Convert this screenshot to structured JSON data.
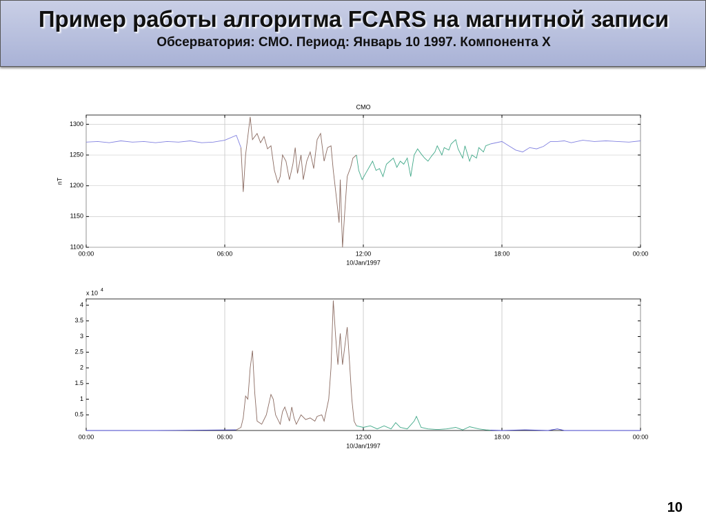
{
  "header": {
    "title": "Пример работы алгоритма FCARS на магнитной записи",
    "subtitle": "Обсерватория: CMO. Период: Январь  10  1997. Компонента X"
  },
  "page_number": "10",
  "chart_data": [
    {
      "type": "line",
      "title": "CMO",
      "ylabel": "nT",
      "xlabel": "10/Jan/1997",
      "xlim": [
        0,
        24
      ],
      "ylim": [
        1100,
        1315
      ],
      "xticks": [
        {
          "value": 0,
          "label": "00:00"
        },
        {
          "value": 6,
          "label": "06:00"
        },
        {
          "value": 12,
          "label": "12:00"
        },
        {
          "value": 18,
          "label": "18:00"
        },
        {
          "value": 24,
          "label": "00:00"
        }
      ],
      "yticks": [
        1100,
        1150,
        1200,
        1250,
        1300
      ],
      "xgrid": true,
      "ygrid": true,
      "series": [
        {
          "color": "#8080e0",
          "x": [
            0,
            0.5,
            1,
            1.5,
            2,
            2.5,
            3,
            3.5,
            4,
            4.5,
            5,
            5.5,
            6,
            6.5,
            6.7
          ],
          "values": [
            1271,
            1272,
            1270,
            1273,
            1271,
            1272,
            1270,
            1272,
            1271,
            1273,
            1270,
            1271,
            1274,
            1282,
            1262
          ]
        },
        {
          "color": "#8a6a60",
          "x": [
            6.7,
            6.8,
            6.9,
            7.1,
            7.2,
            7.4,
            7.55,
            7.7,
            7.85,
            8.0,
            8.15,
            8.3,
            8.4,
            8.5,
            8.65,
            8.8,
            8.95,
            9.05,
            9.15,
            9.3,
            9.4,
            9.55,
            9.7,
            9.85,
            10.0,
            10.15,
            10.3,
            10.45,
            10.6,
            10.7,
            10.85,
            10.95,
            11.0,
            11.1,
            11.2,
            11.3,
            11.45,
            11.55,
            11.7
          ],
          "values": [
            1262,
            1190,
            1250,
            1312,
            1275,
            1285,
            1270,
            1280,
            1260,
            1265,
            1225,
            1205,
            1215,
            1250,
            1240,
            1210,
            1235,
            1262,
            1220,
            1250,
            1210,
            1240,
            1255,
            1228,
            1275,
            1285,
            1240,
            1262,
            1265,
            1225,
            1175,
            1140,
            1210,
            1100,
            1160,
            1215,
            1230,
            1245,
            1250
          ]
        },
        {
          "color": "#40a888",
          "x": [
            11.7,
            11.8,
            11.95,
            12.1,
            12.25,
            12.4,
            12.55,
            12.7,
            12.85,
            13.0,
            13.15,
            13.3,
            13.45,
            13.6,
            13.75,
            13.9,
            14.05,
            14.2,
            14.35,
            14.5,
            14.65,
            14.8,
            14.95,
            15.1,
            15.2,
            15.4,
            15.5,
            15.7,
            15.8,
            16.0,
            16.1,
            16.3,
            16.4,
            16.6,
            16.7,
            16.9,
            17.0,
            17.2,
            17.3,
            17.5
          ],
          "values": [
            1250,
            1225,
            1210,
            1220,
            1230,
            1240,
            1225,
            1228,
            1215,
            1235,
            1240,
            1245,
            1230,
            1240,
            1235,
            1245,
            1215,
            1250,
            1260,
            1252,
            1245,
            1240,
            1248,
            1255,
            1265,
            1250,
            1262,
            1258,
            1268,
            1275,
            1260,
            1245,
            1265,
            1240,
            1250,
            1245,
            1262,
            1255,
            1265,
            1268
          ]
        },
        {
          "color": "#8080e0",
          "x": [
            17.5,
            18,
            18.3,
            18.6,
            18.9,
            19.2,
            19.5,
            19.8,
            20.1,
            20.4,
            20.7,
            21,
            21.5,
            22,
            22.5,
            23,
            23.5,
            24
          ],
          "values": [
            1268,
            1272,
            1265,
            1258,
            1255,
            1262,
            1260,
            1264,
            1272,
            1272,
            1273,
            1270,
            1274,
            1272,
            1273,
            1272,
            1271,
            1273
          ]
        }
      ]
    },
    {
      "type": "line",
      "xlabel": "10/Jan/1997",
      "y_multiplier": "x 10",
      "y_multiplier_exp": "4",
      "xlim": [
        0,
        24
      ],
      "ylim": [
        0,
        4.2
      ],
      "xticks": [
        {
          "value": 0,
          "label": "00:00"
        },
        {
          "value": 6,
          "label": "06:00"
        },
        {
          "value": 12,
          "label": "12:00"
        },
        {
          "value": 18,
          "label": "18:00"
        },
        {
          "value": 24,
          "label": "00:00"
        }
      ],
      "yticks": [
        0.5,
        1,
        1.5,
        2,
        2.5,
        3,
        3.5,
        4
      ],
      "xgrid": true,
      "ygrid": false,
      "series": [
        {
          "color": "#4040c8",
          "x": [
            0,
            3,
            6.5
          ],
          "values": [
            0,
            0,
            0.02
          ]
        },
        {
          "color": "#8a6a60",
          "x": [
            6.5,
            6.7,
            6.8,
            6.9,
            7.0,
            7.1,
            7.2,
            7.3,
            7.4,
            7.6,
            7.8,
            8.0,
            8.1,
            8.2,
            8.4,
            8.5,
            8.6,
            8.8,
            8.9,
            9.0,
            9.1,
            9.3,
            9.5,
            9.7,
            9.9,
            10.0,
            10.2,
            10.3,
            10.5,
            10.6,
            10.7,
            10.8,
            10.9,
            11.0,
            11.1,
            11.3,
            11.4,
            11.5,
            11.6,
            11.7
          ],
          "values": [
            0.02,
            0.1,
            0.4,
            1.1,
            1.0,
            2.0,
            2.55,
            1.2,
            0.3,
            0.2,
            0.5,
            1.15,
            1.0,
            0.5,
            0.2,
            0.6,
            0.75,
            0.3,
            0.75,
            0.4,
            0.2,
            0.5,
            0.35,
            0.4,
            0.3,
            0.45,
            0.5,
            0.3,
            1.0,
            2.0,
            4.15,
            3.0,
            2.1,
            3.1,
            2.1,
            3.3,
            2.2,
            1.0,
            0.3,
            0.15
          ]
        },
        {
          "color": "#40a888",
          "x": [
            11.7,
            12,
            12.3,
            12.6,
            12.9,
            13.2,
            13.4,
            13.6,
            13.9,
            14.2,
            14.3,
            14.5,
            14.8,
            15.2,
            15.6,
            16,
            16.3,
            16.6,
            17,
            17.3,
            17.5
          ],
          "values": [
            0.15,
            0.1,
            0.15,
            0.05,
            0.15,
            0.05,
            0.25,
            0.1,
            0.05,
            0.3,
            0.45,
            0.1,
            0.05,
            0.03,
            0.05,
            0.1,
            0.02,
            0.12,
            0.05,
            0.02,
            0.01
          ]
        },
        {
          "color": "#4040c8",
          "x": [
            17.5,
            18,
            19,
            20,
            20.4,
            20.7,
            22,
            24
          ],
          "values": [
            0.01,
            0,
            0.02,
            0,
            0.05,
            0,
            0,
            0
          ]
        }
      ]
    }
  ]
}
